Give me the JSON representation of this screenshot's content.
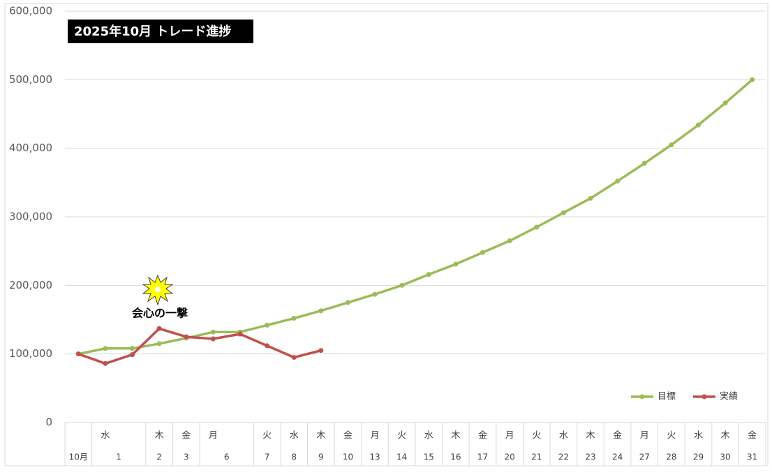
{
  "chart_data": {
    "type": "line",
    "title": "2025年10月 トレード進捗",
    "weekdays": [
      null,
      "水",
      null,
      "木",
      "金",
      "月",
      null,
      "火",
      "水",
      "木",
      "金",
      "月",
      "火",
      "水",
      "木",
      "金",
      "月",
      "火",
      "水",
      "木",
      "金",
      "月",
      "火",
      "水",
      "木",
      "金"
    ],
    "categories": [
      "10月",
      "1",
      null,
      "2",
      "3",
      "6",
      null,
      "7",
      "8",
      "9",
      "10",
      "13",
      "14",
      "15",
      "16",
      "17",
      "20",
      "21",
      "22",
      "23",
      "24",
      "27",
      "28",
      "29",
      "30",
      "31"
    ],
    "series": [
      {
        "name": "目標",
        "color": "#9bbb59",
        "values": [
          100000,
          108000,
          108000,
          115000,
          123000,
          132000,
          132000,
          142000,
          152000,
          163000,
          175000,
          187000,
          200000,
          216000,
          231000,
          248000,
          265000,
          285000,
          306000,
          327000,
          352000,
          378000,
          405000,
          434000,
          466000,
          500000
        ]
      },
      {
        "name": "実績",
        "color": "#c0504d",
        "values": [
          100000,
          86000,
          99000,
          137000,
          125000,
          122000,
          129000,
          112000,
          95000,
          105000,
          null,
          null,
          null,
          null,
          null,
          null,
          null,
          null,
          null,
          null,
          null,
          null,
          null,
          null,
          null,
          null
        ]
      }
    ],
    "annotation": "会心の一撃",
    "ylim": [
      0,
      600000
    ],
    "yticks": [
      0,
      {
        "value": 100000,
        "label": "100,000"
      },
      {
        "value": 200000,
        "label": "200,000"
      },
      {
        "value": 300000,
        "label": "300,000"
      },
      {
        "value": 400000,
        "label": "400,000"
      },
      {
        "value": 500000,
        "label": "500,000"
      },
      {
        "value": 600000,
        "label": "600,000"
      }
    ],
    "grid": true,
    "legend": "lower right"
  }
}
